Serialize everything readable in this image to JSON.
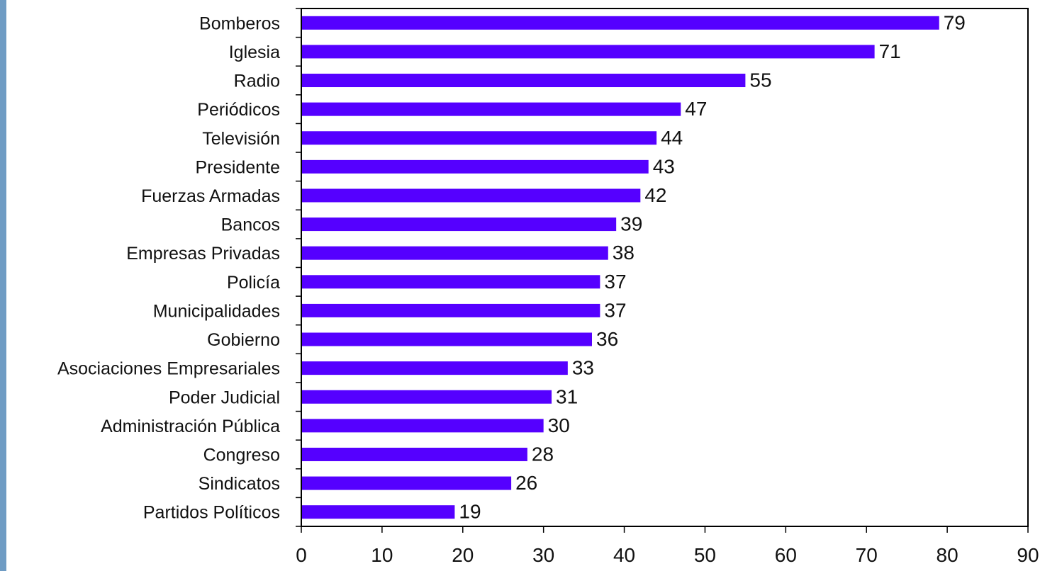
{
  "colors": {
    "bar": "#5500ff",
    "axis": "#000000",
    "left_stripe": "#6f9cc4"
  },
  "chart_data": {
    "type": "bar",
    "orientation": "horizontal",
    "categories": [
      "Bomberos",
      "Iglesia",
      "Radio",
      "Periódicos",
      "Televisión",
      "Presidente",
      "Fuerzas Armadas",
      "Bancos",
      "Empresas Privadas",
      "Policía",
      "Municipalidades",
      "Gobierno",
      "Asociaciones Empresariales",
      "Poder Judicial",
      "Administración Pública",
      "Congreso",
      "Sindicatos",
      "Partidos Políticos"
    ],
    "values": [
      79,
      71,
      55,
      47,
      44,
      43,
      42,
      39,
      38,
      37,
      37,
      36,
      33,
      31,
      30,
      28,
      26,
      19
    ],
    "xlim": [
      0,
      90
    ],
    "xticks": [
      0,
      10,
      20,
      30,
      40,
      50,
      60,
      70,
      80,
      90
    ],
    "title": "",
    "xlabel": "",
    "ylabel": "",
    "grid": false,
    "legend": "none",
    "data_labels": true
  }
}
